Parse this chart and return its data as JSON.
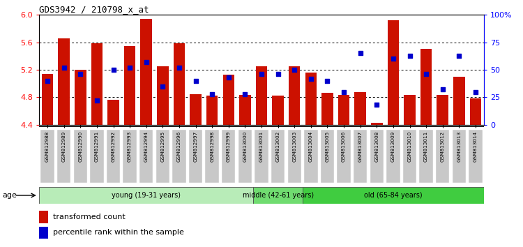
{
  "title": "GDS3942 / 210798_x_at",
  "samples": [
    "GSM812988",
    "GSM812989",
    "GSM812990",
    "GSM812991",
    "GSM812992",
    "GSM812993",
    "GSM812994",
    "GSM812995",
    "GSM812996",
    "GSM812997",
    "GSM812998",
    "GSM812999",
    "GSM813000",
    "GSM813001",
    "GSM813002",
    "GSM813003",
    "GSM813004",
    "GSM813005",
    "GSM813006",
    "GSM813007",
    "GSM813008",
    "GSM813009",
    "GSM813010",
    "GSM813011",
    "GSM813012",
    "GSM813013",
    "GSM813014"
  ],
  "bar_values": [
    5.14,
    5.66,
    5.2,
    5.59,
    4.76,
    5.55,
    5.94,
    5.25,
    5.59,
    4.84,
    4.82,
    5.13,
    4.83,
    5.25,
    4.82,
    5.25,
    5.16,
    4.86,
    4.83,
    4.87,
    4.43,
    5.92,
    4.83,
    5.5,
    4.83,
    5.1,
    4.78
  ],
  "percentile_raw": [
    40,
    52,
    46,
    22,
    50,
    52,
    57,
    35,
    52,
    40,
    28,
    43,
    28,
    46,
    46,
    50,
    42,
    40,
    30,
    65,
    18,
    60,
    63,
    46,
    32,
    63,
    30
  ],
  "groups": [
    {
      "label": "young (19-31 years)",
      "start": 0,
      "end": 13,
      "color": "#b8ecb8"
    },
    {
      "label": "middle (42-61 years)",
      "start": 13,
      "end": 16,
      "color": "#70dc70"
    },
    {
      "label": "old (65-84 years)",
      "start": 16,
      "end": 27,
      "color": "#40cc40"
    }
  ],
  "bar_color": "#cc1100",
  "dot_color": "#0000cc",
  "ymin": 4.4,
  "ymax": 6.0,
  "yticks_left": [
    4.4,
    4.8,
    5.2,
    5.6,
    6.0
  ],
  "yticks_right": [
    0,
    25,
    50,
    75,
    100
  ],
  "ytick_labels_right": [
    "0",
    "25",
    "50",
    "75",
    "100%"
  ],
  "tick_label_bg": "#c8c8c8",
  "legend_bar": "transformed count",
  "legend_dot": "percentile rank within the sample"
}
